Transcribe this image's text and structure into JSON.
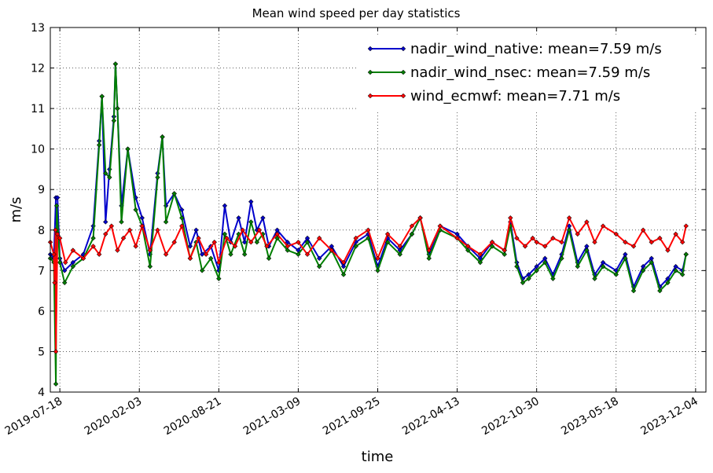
{
  "chart_data": {
    "type": "line",
    "title": "Mean wind speed per day statistics",
    "xlabel": "time",
    "ylabel": "m/s",
    "ylim": [
      4,
      13
    ],
    "yticks": [
      4,
      5,
      6,
      7,
      8,
      9,
      10,
      11,
      12,
      13
    ],
    "xlim": [
      "2019-06-24",
      "2023-12-30"
    ],
    "xticks": [
      "2019-07-18",
      "2020-02-03",
      "2020-08-21",
      "2021-03-09",
      "2021-09-25",
      "2022-04-13",
      "2022-10-30",
      "2023-05-18",
      "2023-12-04"
    ],
    "grid": true,
    "legend_position": "top-right",
    "series": [
      {
        "name": "nadir_wind_native: mean=7.59 m/s",
        "color": "#0000cc",
        "points": [
          [
            "2019-06-24",
            7.4
          ],
          [
            "2019-07-03",
            7.3
          ],
          [
            "2019-07-08",
            8.8
          ],
          [
            "2019-07-12",
            8.8
          ],
          [
            "2019-07-18",
            7.3
          ],
          [
            "2019-07-30",
            7.0
          ],
          [
            "2019-08-20",
            7.2
          ],
          [
            "2019-09-15",
            7.4
          ],
          [
            "2019-10-10",
            8.1
          ],
          [
            "2019-10-25",
            10.2
          ],
          [
            "2019-11-01",
            11.3
          ],
          [
            "2019-11-10",
            8.2
          ],
          [
            "2019-11-20",
            9.5
          ],
          [
            "2019-12-01",
            10.8
          ],
          [
            "2019-12-05",
            12.1
          ],
          [
            "2019-12-10",
            11.0
          ],
          [
            "2019-12-20",
            8.6
          ],
          [
            "2020-01-05",
            10.0
          ],
          [
            "2020-01-25",
            8.8
          ],
          [
            "2020-02-10",
            8.3
          ],
          [
            "2020-03-01",
            7.4
          ],
          [
            "2020-03-20",
            9.4
          ],
          [
            "2020-04-01",
            10.3
          ],
          [
            "2020-04-10",
            8.6
          ],
          [
            "2020-05-01",
            8.9
          ],
          [
            "2020-05-20",
            8.5
          ],
          [
            "2020-06-10",
            7.6
          ],
          [
            "2020-06-25",
            8.0
          ],
          [
            "2020-07-10",
            7.4
          ],
          [
            "2020-08-01",
            7.6
          ],
          [
            "2020-08-21",
            7.0
          ],
          [
            "2020-09-05",
            8.6
          ],
          [
            "2020-09-20",
            7.7
          ],
          [
            "2020-10-10",
            8.3
          ],
          [
            "2020-10-25",
            7.7
          ],
          [
            "2020-11-10",
            8.7
          ],
          [
            "2020-11-25",
            8.0
          ],
          [
            "2020-12-10",
            8.3
          ],
          [
            "2020-12-25",
            7.6
          ],
          [
            "2021-01-15",
            8.0
          ],
          [
            "2021-02-10",
            7.7
          ],
          [
            "2021-03-09",
            7.5
          ],
          [
            "2021-04-01",
            7.8
          ],
          [
            "2021-05-01",
            7.3
          ],
          [
            "2021-06-01",
            7.6
          ],
          [
            "2021-07-01",
            7.1
          ],
          [
            "2021-08-01",
            7.7
          ],
          [
            "2021-09-01",
            7.9
          ],
          [
            "2021-09-25",
            7.1
          ],
          [
            "2021-10-20",
            7.8
          ],
          [
            "2021-11-20",
            7.5
          ],
          [
            "2021-12-20",
            7.9
          ],
          [
            "2022-01-10",
            8.3
          ],
          [
            "2022-02-01",
            7.4
          ],
          [
            "2022-03-01",
            8.1
          ],
          [
            "2022-04-13",
            7.9
          ],
          [
            "2022-05-10",
            7.6
          ],
          [
            "2022-06-10",
            7.3
          ],
          [
            "2022-07-10",
            7.7
          ],
          [
            "2022-08-10",
            7.5
          ],
          [
            "2022-08-25",
            8.2
          ],
          [
            "2022-09-10",
            7.2
          ],
          [
            "2022-09-25",
            6.8
          ],
          [
            "2022-10-10",
            6.9
          ],
          [
            "2022-10-30",
            7.1
          ],
          [
            "2022-11-20",
            7.3
          ],
          [
            "2022-12-10",
            6.9
          ],
          [
            "2023-01-01",
            7.4
          ],
          [
            "2023-01-20",
            8.1
          ],
          [
            "2023-02-10",
            7.2
          ],
          [
            "2023-03-05",
            7.6
          ],
          [
            "2023-03-25",
            6.9
          ],
          [
            "2023-04-15",
            7.2
          ],
          [
            "2023-05-18",
            7.0
          ],
          [
            "2023-06-10",
            7.4
          ],
          [
            "2023-07-01",
            6.6
          ],
          [
            "2023-07-25",
            7.1
          ],
          [
            "2023-08-15",
            7.3
          ],
          [
            "2023-09-05",
            6.6
          ],
          [
            "2023-09-25",
            6.8
          ],
          [
            "2023-10-15",
            7.1
          ],
          [
            "2023-11-01",
            7.0
          ],
          [
            "2023-11-10",
            7.4
          ]
        ]
      },
      {
        "name": "nadir_wind_nsec: mean=7.59 m/s",
        "color": "#007f00",
        "points": [
          [
            "2019-06-24",
            7.3
          ],
          [
            "2019-07-03",
            7.2
          ],
          [
            "2019-07-08",
            4.2
          ],
          [
            "2019-07-10",
            8.6
          ],
          [
            "2019-07-18",
            7.2
          ],
          [
            "2019-07-30",
            6.7
          ],
          [
            "2019-08-20",
            7.1
          ],
          [
            "2019-09-15",
            7.3
          ],
          [
            "2019-10-10",
            7.8
          ],
          [
            "2019-10-25",
            10.1
          ],
          [
            "2019-11-01",
            11.3
          ],
          [
            "2019-11-10",
            9.4
          ],
          [
            "2019-11-20",
            9.3
          ],
          [
            "2019-12-01",
            10.7
          ],
          [
            "2019-12-05",
            12.1
          ],
          [
            "2019-12-10",
            11.0
          ],
          [
            "2019-12-20",
            8.2
          ],
          [
            "2020-01-05",
            10.0
          ],
          [
            "2020-01-25",
            8.5
          ],
          [
            "2020-02-10",
            8.1
          ],
          [
            "2020-03-01",
            7.1
          ],
          [
            "2020-03-20",
            9.3
          ],
          [
            "2020-04-01",
            10.3
          ],
          [
            "2020-04-10",
            8.2
          ],
          [
            "2020-05-01",
            8.9
          ],
          [
            "2020-05-20",
            8.3
          ],
          [
            "2020-06-10",
            7.3
          ],
          [
            "2020-06-25",
            7.7
          ],
          [
            "2020-07-10",
            7.0
          ],
          [
            "2020-08-01",
            7.3
          ],
          [
            "2020-08-21",
            6.8
          ],
          [
            "2020-09-05",
            7.9
          ],
          [
            "2020-09-20",
            7.4
          ],
          [
            "2020-10-10",
            7.9
          ],
          [
            "2020-10-25",
            7.4
          ],
          [
            "2020-11-10",
            8.2
          ],
          [
            "2020-11-25",
            7.7
          ],
          [
            "2020-12-10",
            7.9
          ],
          [
            "2020-12-25",
            7.3
          ],
          [
            "2021-01-15",
            7.8
          ],
          [
            "2021-02-10",
            7.5
          ],
          [
            "2021-03-09",
            7.4
          ],
          [
            "2021-04-01",
            7.7
          ],
          [
            "2021-05-01",
            7.1
          ],
          [
            "2021-06-01",
            7.5
          ],
          [
            "2021-07-01",
            6.9
          ],
          [
            "2021-08-01",
            7.6
          ],
          [
            "2021-09-01",
            7.8
          ],
          [
            "2021-09-25",
            7.0
          ],
          [
            "2021-10-20",
            7.7
          ],
          [
            "2021-11-20",
            7.4
          ],
          [
            "2021-12-20",
            7.9
          ],
          [
            "2022-01-10",
            8.3
          ],
          [
            "2022-02-01",
            7.3
          ],
          [
            "2022-03-01",
            8.0
          ],
          [
            "2022-04-13",
            7.8
          ],
          [
            "2022-05-10",
            7.5
          ],
          [
            "2022-06-10",
            7.2
          ],
          [
            "2022-07-10",
            7.6
          ],
          [
            "2022-08-10",
            7.4
          ],
          [
            "2022-08-25",
            8.1
          ],
          [
            "2022-09-10",
            7.1
          ],
          [
            "2022-09-25",
            6.7
          ],
          [
            "2022-10-10",
            6.8
          ],
          [
            "2022-10-30",
            7.0
          ],
          [
            "2022-11-20",
            7.2
          ],
          [
            "2022-12-10",
            6.8
          ],
          [
            "2023-01-01",
            7.3
          ],
          [
            "2023-01-20",
            8.0
          ],
          [
            "2023-02-10",
            7.1
          ],
          [
            "2023-03-05",
            7.5
          ],
          [
            "2023-03-25",
            6.8
          ],
          [
            "2023-04-15",
            7.1
          ],
          [
            "2023-05-18",
            6.9
          ],
          [
            "2023-06-10",
            7.3
          ],
          [
            "2023-07-01",
            6.5
          ],
          [
            "2023-07-25",
            7.0
          ],
          [
            "2023-08-15",
            7.2
          ],
          [
            "2023-09-05",
            6.5
          ],
          [
            "2023-09-25",
            6.7
          ],
          [
            "2023-10-15",
            7.0
          ],
          [
            "2023-11-01",
            6.9
          ],
          [
            "2023-11-10",
            7.4
          ]
        ]
      },
      {
        "name": "wind_ecmwf: mean=7.71 m/s",
        "color": "#ff0000",
        "points": [
          [
            "2019-06-24",
            7.7
          ],
          [
            "2019-07-03",
            7.4
          ],
          [
            "2019-07-05",
            6.7
          ],
          [
            "2019-07-07",
            8.0
          ],
          [
            "2019-07-08",
            5.0
          ],
          [
            "2019-07-12",
            7.9
          ],
          [
            "2019-07-18",
            7.8
          ],
          [
            "2019-08-01",
            7.2
          ],
          [
            "2019-08-20",
            7.5
          ],
          [
            "2019-09-15",
            7.3
          ],
          [
            "2019-10-10",
            7.6
          ],
          [
            "2019-10-25",
            7.4
          ],
          [
            "2019-11-10",
            7.9
          ],
          [
            "2019-11-25",
            8.1
          ],
          [
            "2019-12-10",
            7.5
          ],
          [
            "2019-12-25",
            7.8
          ],
          [
            "2020-01-10",
            8.0
          ],
          [
            "2020-01-25",
            7.6
          ],
          [
            "2020-02-10",
            8.1
          ],
          [
            "2020-03-01",
            7.5
          ],
          [
            "2020-03-20",
            8.0
          ],
          [
            "2020-04-10",
            7.4
          ],
          [
            "2020-05-01",
            7.7
          ],
          [
            "2020-05-20",
            8.1
          ],
          [
            "2020-06-10",
            7.3
          ],
          [
            "2020-07-01",
            7.8
          ],
          [
            "2020-07-20",
            7.4
          ],
          [
            "2020-08-10",
            7.7
          ],
          [
            "2020-08-21",
            7.2
          ],
          [
            "2020-09-10",
            7.8
          ],
          [
            "2020-10-01",
            7.6
          ],
          [
            "2020-10-20",
            8.0
          ],
          [
            "2020-11-10",
            7.7
          ],
          [
            "2020-12-01",
            8.0
          ],
          [
            "2020-12-20",
            7.6
          ],
          [
            "2021-01-15",
            7.9
          ],
          [
            "2021-02-10",
            7.6
          ],
          [
            "2021-03-09",
            7.7
          ],
          [
            "2021-04-01",
            7.4
          ],
          [
            "2021-05-01",
            7.8
          ],
          [
            "2021-06-01",
            7.5
          ],
          [
            "2021-07-01",
            7.2
          ],
          [
            "2021-08-01",
            7.8
          ],
          [
            "2021-09-01",
            8.0
          ],
          [
            "2021-09-25",
            7.3
          ],
          [
            "2021-10-20",
            7.9
          ],
          [
            "2021-11-20",
            7.6
          ],
          [
            "2021-12-20",
            8.1
          ],
          [
            "2022-01-10",
            8.3
          ],
          [
            "2022-02-01",
            7.5
          ],
          [
            "2022-03-01",
            8.1
          ],
          [
            "2022-04-13",
            7.8
          ],
          [
            "2022-05-10",
            7.6
          ],
          [
            "2022-06-10",
            7.4
          ],
          [
            "2022-07-10",
            7.7
          ],
          [
            "2022-08-10",
            7.5
          ],
          [
            "2022-08-25",
            8.3
          ],
          [
            "2022-09-10",
            7.8
          ],
          [
            "2022-10-01",
            7.6
          ],
          [
            "2022-10-20",
            7.8
          ],
          [
            "2022-10-30",
            7.7
          ],
          [
            "2022-11-20",
            7.6
          ],
          [
            "2022-12-10",
            7.8
          ],
          [
            "2023-01-01",
            7.7
          ],
          [
            "2023-01-20",
            8.3
          ],
          [
            "2023-02-10",
            7.9
          ],
          [
            "2023-03-05",
            8.2
          ],
          [
            "2023-03-25",
            7.7
          ],
          [
            "2023-04-15",
            8.1
          ],
          [
            "2023-05-18",
            7.9
          ],
          [
            "2023-06-10",
            7.7
          ],
          [
            "2023-07-01",
            7.6
          ],
          [
            "2023-07-25",
            8.0
          ],
          [
            "2023-08-15",
            7.7
          ],
          [
            "2023-09-05",
            7.8
          ],
          [
            "2023-09-25",
            7.5
          ],
          [
            "2023-10-15",
            7.9
          ],
          [
            "2023-11-01",
            7.7
          ],
          [
            "2023-11-10",
            8.1
          ]
        ]
      }
    ]
  }
}
